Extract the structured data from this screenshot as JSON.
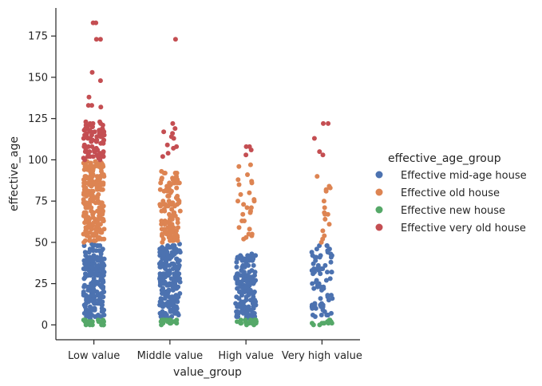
{
  "chart_data": {
    "type": "scatter",
    "subtype": "strip",
    "xlabel": "value_group",
    "ylabel": "effective_age",
    "categories": [
      "Low value",
      "Middle value",
      "High value",
      "Very high value"
    ],
    "yticks": [
      0,
      25,
      50,
      75,
      100,
      125,
      150,
      175
    ],
    "ylim": [
      -9,
      192
    ],
    "grid": false,
    "legend": {
      "title": "effective_age_group",
      "placement": "right",
      "entries": [
        {
          "name": "Effective mid-age house",
          "color": "#4c72b0"
        },
        {
          "name": "Effective old house",
          "color": "#dd8452"
        },
        {
          "name": "Effective new house",
          "color": "#55a868"
        },
        {
          "name": "Effective very old house",
          "color": "#c44e52"
        }
      ]
    },
    "series": [
      {
        "name": "Effective new house",
        "color": "#55a868",
        "ranges": [
          [
            0,
            3
          ],
          [
            0,
            3
          ],
          [
            0,
            3
          ],
          [
            0,
            3
          ]
        ],
        "densities": [
          1.0,
          1.0,
          1.0,
          0.6
        ]
      },
      {
        "name": "Effective mid-age house",
        "color": "#4c72b0",
        "ranges": [
          [
            4,
            49
          ],
          [
            4,
            49
          ],
          [
            4,
            43
          ],
          [
            4,
            49
          ]
        ],
        "densities": [
          1.0,
          1.0,
          0.9,
          0.35
        ]
      },
      {
        "name": "Effective old house",
        "color": "#dd8452",
        "ranges": [
          [
            50,
            99
          ],
          [
            50,
            93
          ],
          [
            50,
            98
          ],
          [
            50,
            93
          ]
        ],
        "densities": [
          1.0,
          0.55,
          0.12,
          0.08
        ]
      },
      {
        "name": "Effective very old house",
        "color": "#c44e52",
        "ranges": [
          [
            100,
            123
          ],
          [
            100,
            122
          ],
          [
            100,
            108
          ],
          [
            100,
            122
          ]
        ],
        "densities": [
          0.7,
          0.05,
          0.02,
          0.02
        ],
        "outliers": [
          [
            148,
            173,
            173,
            183,
            183,
            153,
            138,
            133,
            133,
            132
          ],
          [
            173,
            122,
            116,
            114,
            108,
            107,
            104
          ],
          [
            106,
            108,
            103
          ],
          [
            122,
            122,
            103
          ]
        ]
      }
    ]
  }
}
